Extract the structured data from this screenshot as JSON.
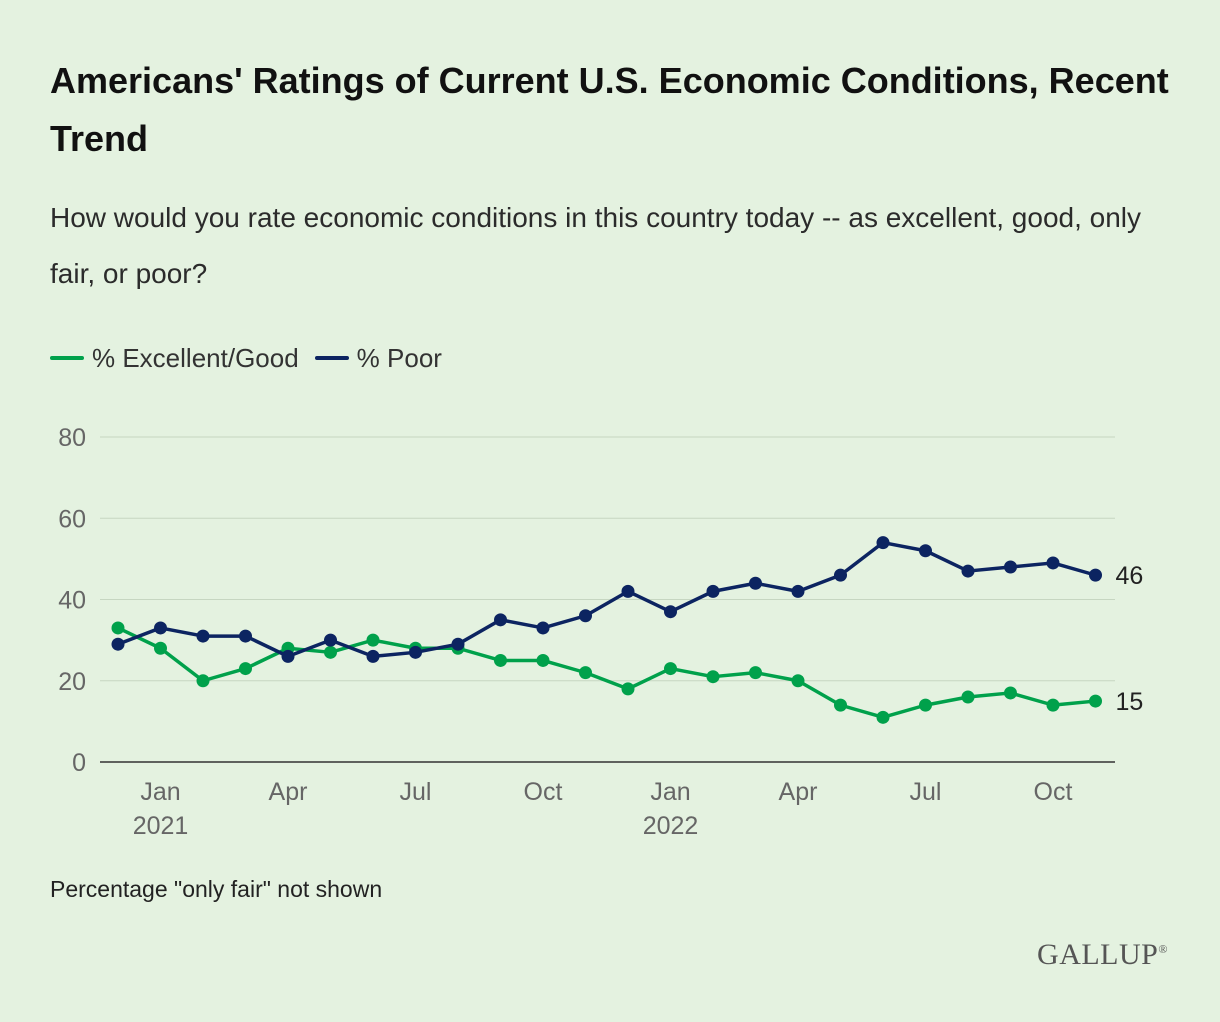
{
  "header": {
    "title": "Americans' Ratings of Current U.S. Economic Conditions, Recent Trend",
    "subtitle": "How would you rate economic conditions in this country today -- as excellent, good, only fair, or poor?"
  },
  "legend": [
    {
      "label": "% Excellent/Good",
      "color": "#00a14b"
    },
    {
      "label": "% Poor",
      "color": "#0c2461"
    }
  ],
  "footer": {
    "note": "Percentage \"only fair\" not shown",
    "brand": "GALLUP",
    "brand_mark": "®"
  },
  "chart_data": {
    "type": "line",
    "ylim": [
      0,
      80
    ],
    "y_ticks": [
      0,
      20,
      40,
      60,
      80
    ],
    "grid": true,
    "legend_position": "top-left",
    "x": [
      "2020-12",
      "2021-01",
      "2021-02",
      "2021-03",
      "2021-04",
      "2021-05",
      "2021-06",
      "2021-07",
      "2021-08",
      "2021-09",
      "2021-10",
      "2021-11",
      "2021-12",
      "2022-01",
      "2022-02",
      "2022-03",
      "2022-04",
      "2022-05",
      "2022-06",
      "2022-07",
      "2022-08",
      "2022-09",
      "2022-10",
      "2022-11"
    ],
    "x_tick_labels": [
      {
        "x": "2021-01",
        "line1": "Jan",
        "line2": "2021"
      },
      {
        "x": "2021-04",
        "line1": "Apr",
        "line2": ""
      },
      {
        "x": "2021-07",
        "line1": "Jul",
        "line2": ""
      },
      {
        "x": "2021-10",
        "line1": "Oct",
        "line2": ""
      },
      {
        "x": "2022-01",
        "line1": "Jan",
        "line2": "2022"
      },
      {
        "x": "2022-04",
        "line1": "Apr",
        "line2": ""
      },
      {
        "x": "2022-07",
        "line1": "Jul",
        "line2": ""
      },
      {
        "x": "2022-10",
        "line1": "Oct",
        "line2": ""
      }
    ],
    "series": [
      {
        "name": "% Excellent/Good",
        "color": "#00a14b",
        "end_label": "15",
        "values": [
          33,
          28,
          20,
          23,
          28,
          27,
          30,
          28,
          28,
          25,
          25,
          22,
          18,
          23,
          21,
          22,
          20,
          14,
          11,
          14,
          16,
          17,
          14,
          15
        ]
      },
      {
        "name": "% Poor",
        "color": "#0c2461",
        "end_label": "46",
        "values": [
          29,
          33,
          31,
          31,
          26,
          30,
          26,
          27,
          29,
          35,
          33,
          36,
          42,
          37,
          42,
          44,
          42,
          46,
          54,
          52,
          47,
          48,
          49,
          46
        ]
      }
    ]
  }
}
